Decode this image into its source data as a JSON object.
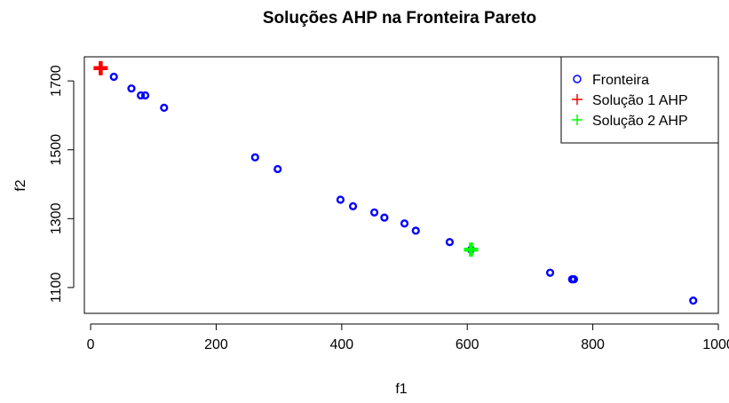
{
  "chart_data": {
    "type": "scatter",
    "title": "Soluções AHP na Fronteira Pareto",
    "xlabel": "f1",
    "ylabel": "f2",
    "xlim": [
      -10,
      1000
    ],
    "ylim": [
      1025,
      1770
    ],
    "x_ticks": [
      0,
      200,
      400,
      600,
      800,
      1000
    ],
    "y_ticks": [
      1100,
      1300,
      1500,
      1700
    ],
    "x_tick_labels": [
      "0",
      "200",
      "400",
      "600",
      "800",
      "1000"
    ],
    "y_tick_labels": [
      "1100",
      "1300",
      "1500",
      "1700"
    ],
    "legend_position": "top-right",
    "series": [
      {
        "name": "Fronteira",
        "marker": "circle",
        "color": "#0000ff",
        "points": [
          [
            37,
            1712
          ],
          [
            65,
            1678
          ],
          [
            80,
            1658
          ],
          [
            87,
            1658
          ],
          [
            117,
            1622
          ],
          [
            262,
            1478
          ],
          [
            298,
            1444
          ],
          [
            398,
            1355
          ],
          [
            418,
            1336
          ],
          [
            452,
            1318
          ],
          [
            468,
            1303
          ],
          [
            500,
            1286
          ],
          [
            518,
            1265
          ],
          [
            572,
            1232
          ],
          [
            606,
            1210
          ],
          [
            732,
            1143
          ],
          [
            767,
            1124
          ],
          [
            770,
            1124
          ],
          [
            960,
            1062
          ]
        ]
      },
      {
        "name": "Solução 1 AHP",
        "marker": "plus",
        "color": "#ff0000",
        "points": [
          [
            16,
            1737
          ]
        ]
      },
      {
        "name": "Solução 2 AHP",
        "marker": "plus",
        "color": "#00ff00",
        "points": [
          [
            606,
            1210
          ]
        ]
      }
    ]
  }
}
